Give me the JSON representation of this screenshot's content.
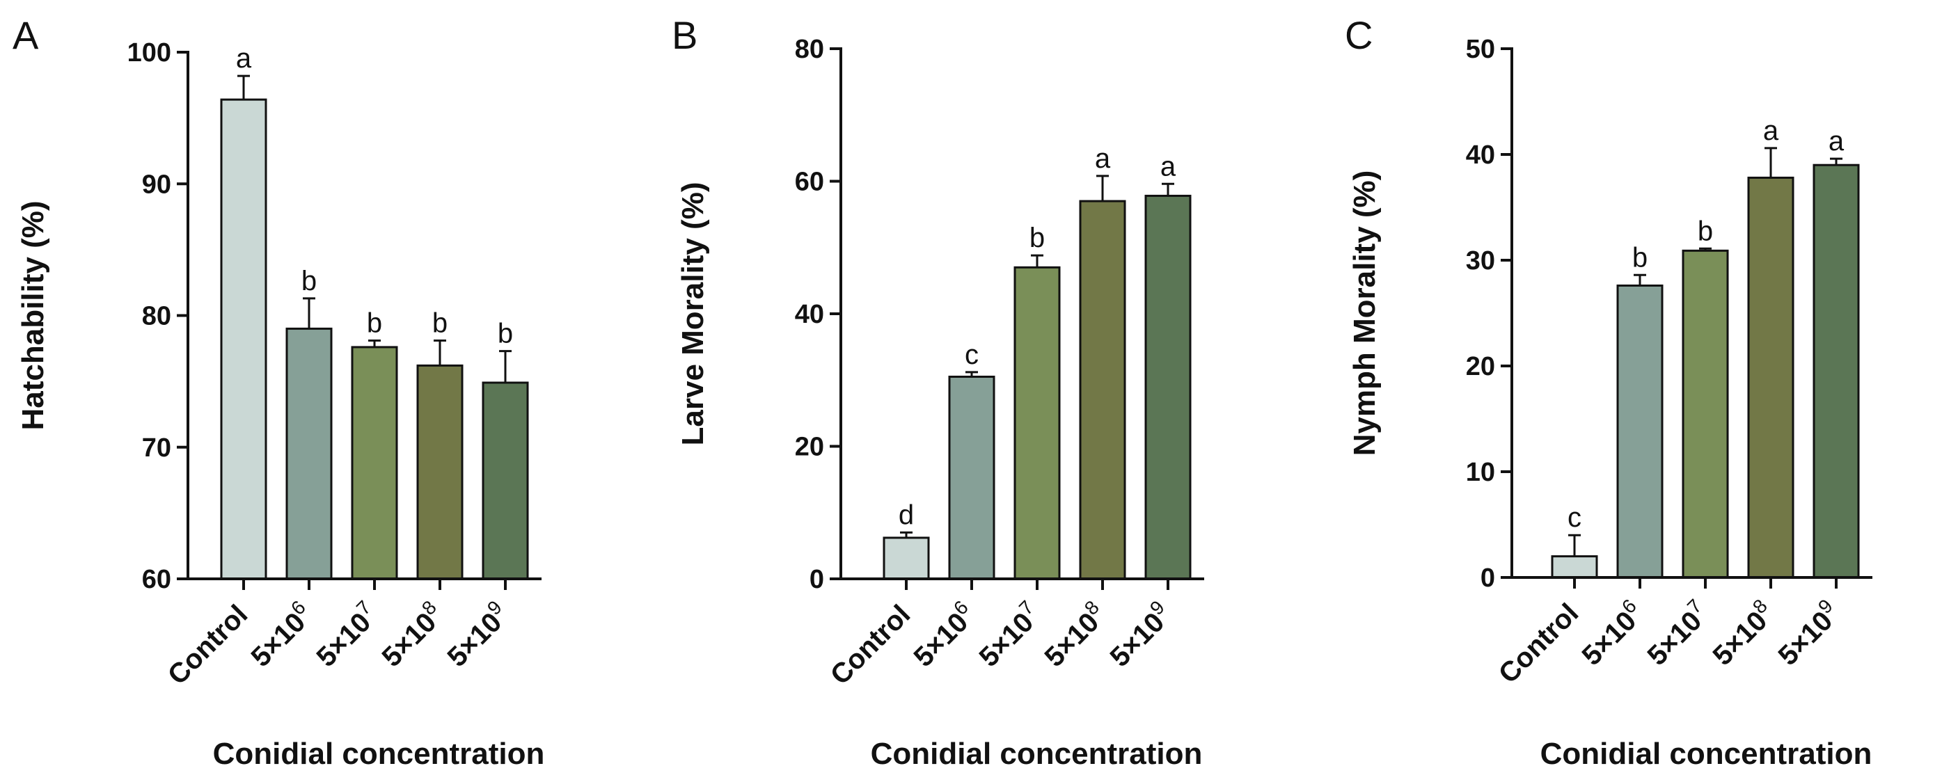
{
  "figure": {
    "x_axis_title": "Conidial concentration"
  },
  "chart_data": [
    {
      "type": "bar",
      "panel": "A",
      "ylabel": "Hatchability (%)",
      "xlabel": "Conidial concentration",
      "ylim": [
        60,
        100
      ],
      "yticks": [
        60,
        70,
        80,
        90,
        100
      ],
      "categories": [
        {
          "base": "Control",
          "sup": ""
        },
        {
          "base": "5×10",
          "sup": "6"
        },
        {
          "base": "5×10",
          "sup": "7"
        },
        {
          "base": "5×10",
          "sup": "8"
        },
        {
          "base": "5×10",
          "sup": "9"
        }
      ],
      "values": [
        96.4,
        79.0,
        77.6,
        76.2,
        74.9
      ],
      "errors": [
        1.8,
        2.3,
        0.5,
        1.9,
        2.4
      ],
      "letters": [
        "a",
        "b",
        "b",
        "b",
        "b"
      ],
      "colors": [
        "#cad8d5",
        "#86a097",
        "#7a8f58",
        "#727847",
        "#5b7655"
      ]
    },
    {
      "type": "bar",
      "panel": "B",
      "ylabel": "Larve Morality (%)",
      "xlabel": "Conidial concentration",
      "ylim": [
        0,
        80
      ],
      "yticks": [
        0,
        20,
        40,
        60,
        80
      ],
      "categories": [
        {
          "base": "Control",
          "sup": ""
        },
        {
          "base": "5×10",
          "sup": "6"
        },
        {
          "base": "5×10",
          "sup": "7"
        },
        {
          "base": "5×10",
          "sup": "8"
        },
        {
          "base": "5×10",
          "sup": "9"
        }
      ],
      "values": [
        6.2,
        30.5,
        47.0,
        57.0,
        57.8
      ],
      "errors": [
        0.8,
        0.7,
        1.8,
        3.8,
        1.8
      ],
      "letters": [
        "d",
        "c",
        "b",
        "a",
        "a"
      ],
      "colors": [
        "#cad8d5",
        "#86a097",
        "#7a8f58",
        "#727847",
        "#5b7655"
      ]
    },
    {
      "type": "bar",
      "panel": "C",
      "ylabel": "Nymph Morality (%)",
      "xlabel": "Conidial concentration",
      "ylim": [
        0,
        50
      ],
      "yticks": [
        0,
        10,
        20,
        30,
        40,
        50
      ],
      "categories": [
        {
          "base": "Control",
          "sup": ""
        },
        {
          "base": "5×10",
          "sup": "6"
        },
        {
          "base": "5×10",
          "sup": "7"
        },
        {
          "base": "5×10",
          "sup": "8"
        },
        {
          "base": "5×10",
          "sup": "9"
        }
      ],
      "values": [
        2.0,
        27.6,
        30.9,
        37.8,
        39.0
      ],
      "errors": [
        2.0,
        1.0,
        0.2,
        2.8,
        0.6
      ],
      "letters": [
        "c",
        "b",
        "b",
        "a",
        "a"
      ],
      "colors": [
        "#cad8d5",
        "#86a097",
        "#7a8f58",
        "#727847",
        "#5b7655"
      ]
    }
  ]
}
